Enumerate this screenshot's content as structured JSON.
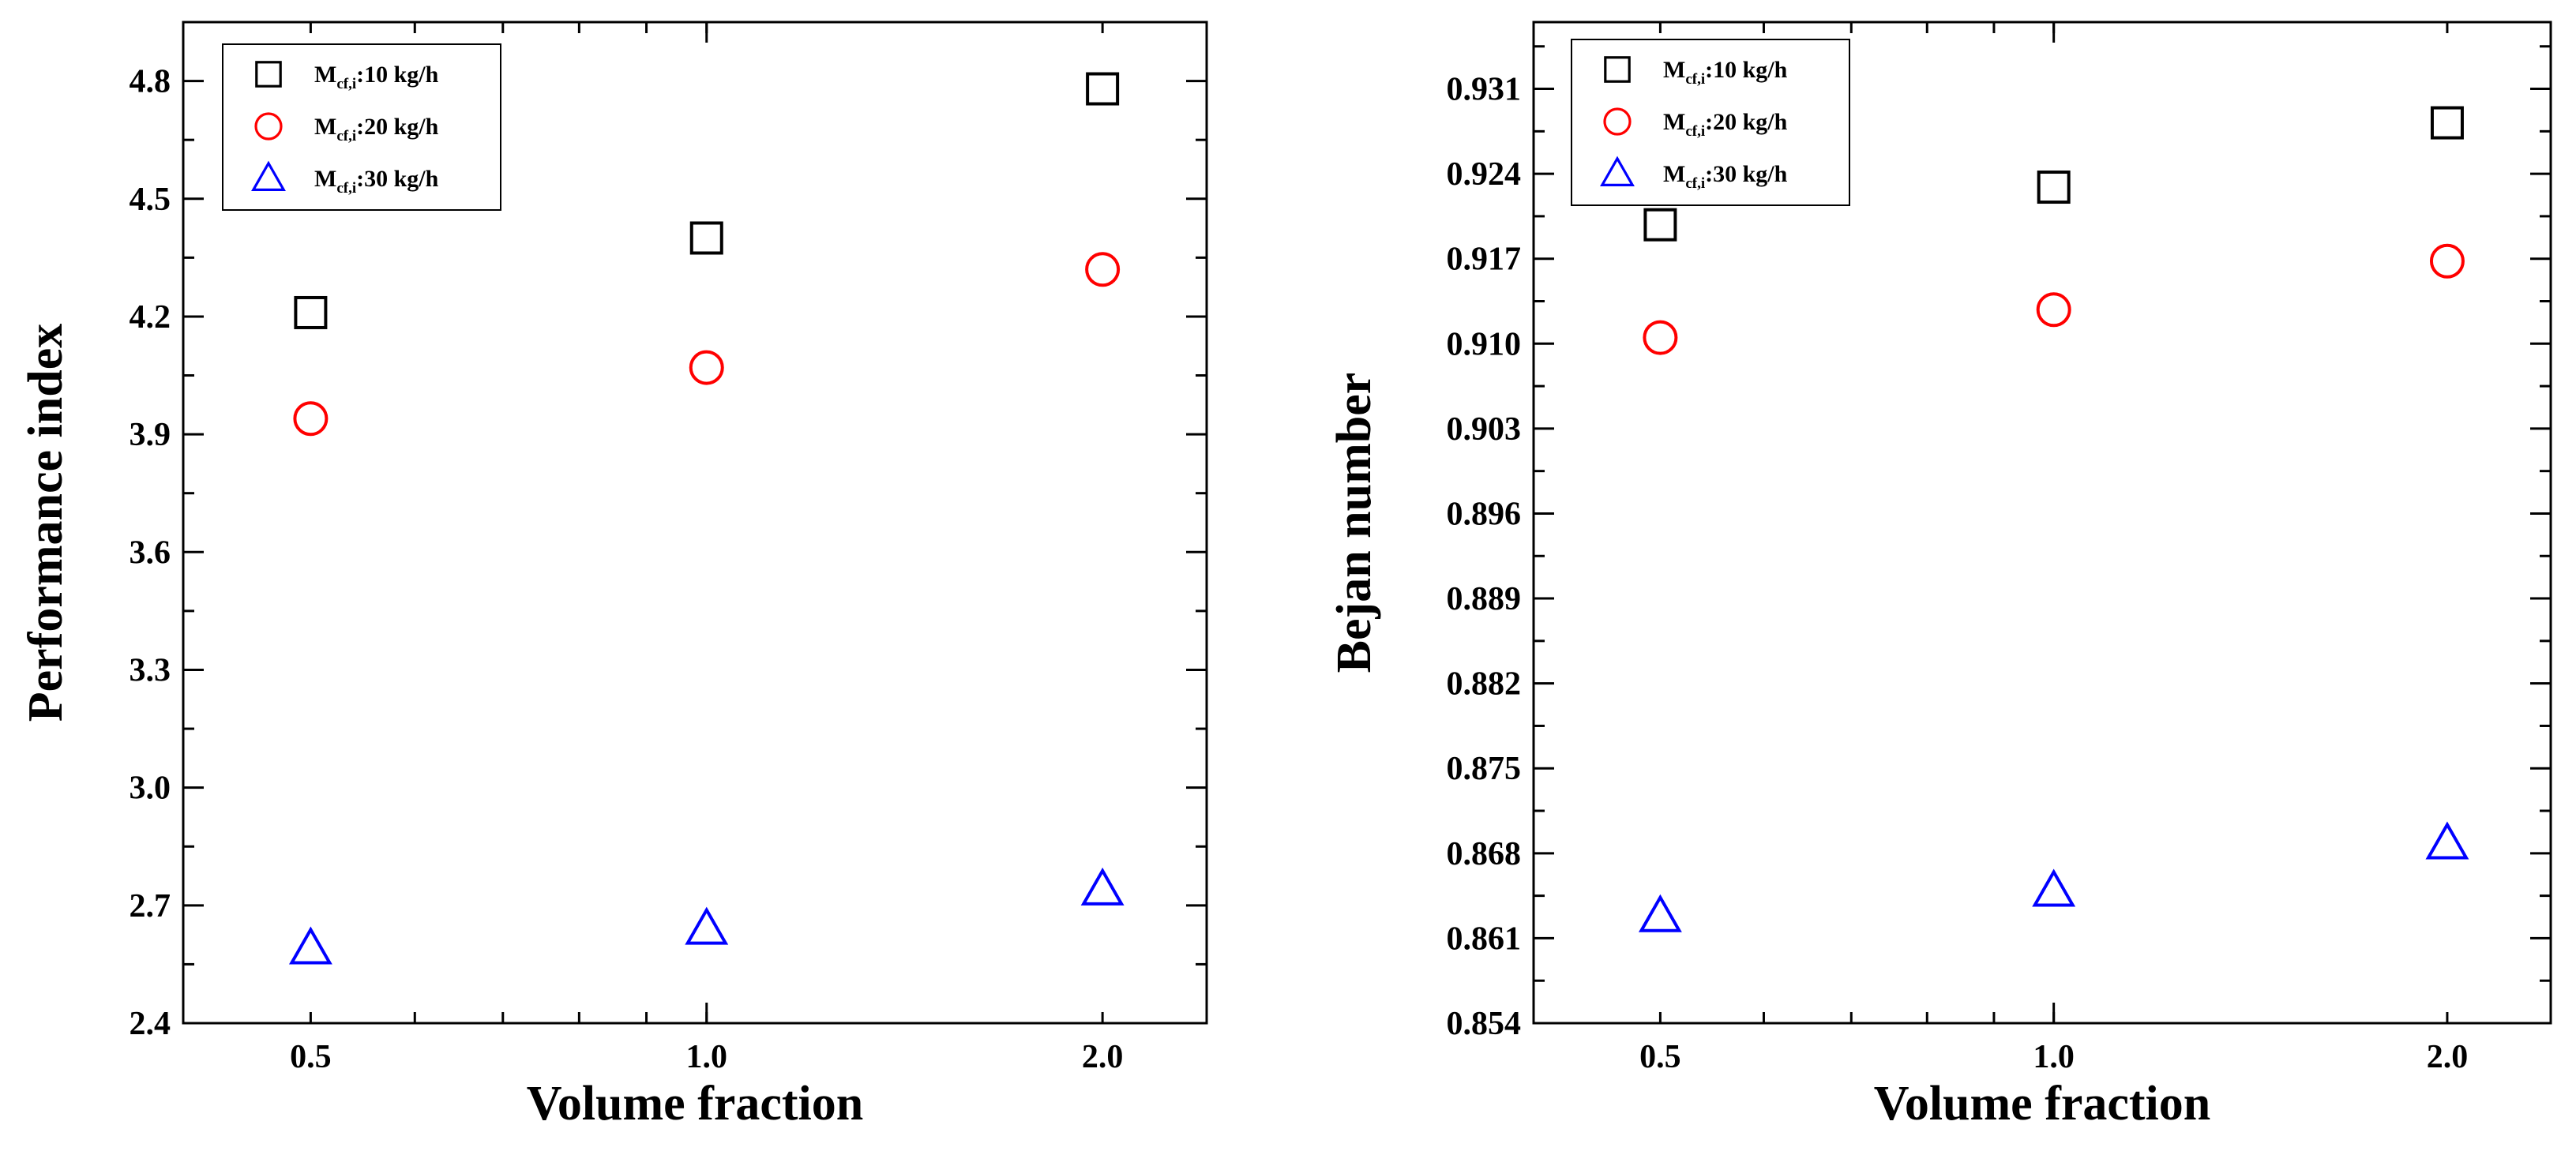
{
  "chart_data": [
    {
      "type": "scatter",
      "xscale": "log",
      "xlabel": "Volume fraction",
      "ylabel": "Performance index",
      "x": [
        0.5,
        1.0,
        2.0
      ],
      "xticks": [
        "0.5",
        "1.0",
        "2.0"
      ],
      "ylim": [
        2.4,
        4.95
      ],
      "yticks": [
        "2.4",
        "2.7",
        "3.0",
        "3.3",
        "3.6",
        "3.9",
        "4.2",
        "4.5",
        "4.8"
      ],
      "legend_position": "top-left",
      "series": [
        {
          "name": "Mcf,i:10 kg/h",
          "label_main": "M",
          "label_sub": "cf,i",
          "label_rest": ":10 kg/h",
          "marker": "square",
          "color": "#000000",
          "values": [
            4.21,
            4.4,
            4.78
          ]
        },
        {
          "name": "Mcf,i:20 kg/h",
          "label_main": "M",
          "label_sub": "cf,i",
          "label_rest": ":20 kg/h",
          "marker": "circle",
          "color": "#ff0000",
          "values": [
            3.94,
            4.07,
            4.32
          ]
        },
        {
          "name": "Mcf,i:30 kg/h",
          "label_main": "M",
          "label_sub": "cf,i",
          "label_rest": ":30 kg/h",
          "marker": "triangle",
          "color": "#0000ff",
          "values": [
            2.59,
            2.64,
            2.74
          ]
        }
      ]
    },
    {
      "type": "scatter",
      "xscale": "log",
      "xlabel": "Volume fraction",
      "ylabel": "Bejan number",
      "x": [
        0.5,
        1.0,
        2.0
      ],
      "xticks": [
        "0.5",
        "1.0",
        "2.0"
      ],
      "ylim": [
        0.854,
        0.9365
      ],
      "yticks": [
        "0.854",
        "0.861",
        "0.868",
        "0.875",
        "0.882",
        "0.889",
        "0.896",
        "0.903",
        "0.910",
        "0.917",
        "0.924",
        "0.931"
      ],
      "legend_position": "top-left",
      "series": [
        {
          "name": "Mcf,i:10 kg/h",
          "label_main": "M",
          "label_sub": "cf,i",
          "label_rest": ":10 kg/h",
          "marker": "square",
          "color": "#000000",
          "values": [
            0.9198,
            0.9229,
            0.9282
          ]
        },
        {
          "name": "Mcf,i:20 kg/h",
          "label_main": "M",
          "label_sub": "cf,i",
          "label_rest": ":20 kg/h",
          "marker": "circle",
          "color": "#ff0000",
          "values": [
            0.9105,
            0.9128,
            0.9168
          ]
        },
        {
          "name": "Mcf,i:30 kg/h",
          "label_main": "M",
          "label_sub": "cf,i",
          "label_rest": ":30 kg/h",
          "marker": "triangle",
          "color": "#0000ff",
          "values": [
            0.8628,
            0.8649,
            0.8688
          ]
        }
      ]
    }
  ]
}
